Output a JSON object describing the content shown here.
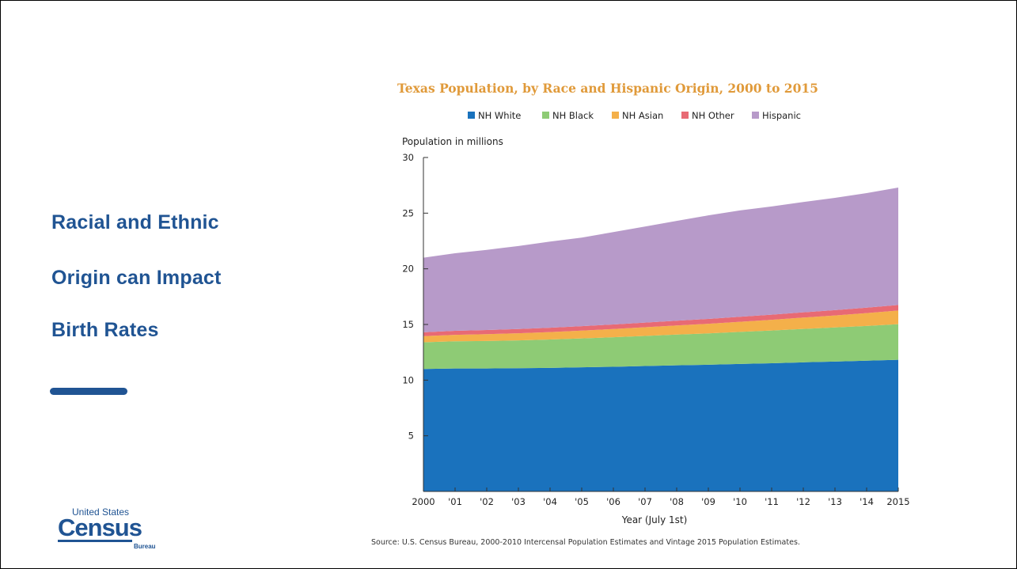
{
  "slide": {
    "title_lines": [
      "Racial and Ethnic",
      "Origin can Impact",
      "Birth Rates"
    ],
    "accent_color": "#205493"
  },
  "logo": {
    "top": "United States",
    "main": "Census",
    "sub": "Bureau"
  },
  "chart_data": {
    "type": "area",
    "stacked": true,
    "title": "Texas Population, by Race and Hispanic Origin, 2000 to 2015",
    "ylabel": "Population in millions",
    "xlabel": "Year (July 1st)",
    "ylim": [
      0,
      30
    ],
    "yticks": [
      5,
      10,
      15,
      20,
      25,
      30
    ],
    "categories": [
      "2000",
      "'01",
      "'02",
      "'03",
      "'04",
      "'05",
      "'06",
      "'07",
      "'08",
      "'09",
      "'10",
      "'11",
      "'12",
      "'13",
      "'14",
      "2015"
    ],
    "legend_position": "top",
    "series": [
      {
        "name": "NH White",
        "color": "#1a72bd",
        "values": [
          11.0,
          11.05,
          11.05,
          11.07,
          11.1,
          11.15,
          11.2,
          11.27,
          11.33,
          11.38,
          11.45,
          11.52,
          11.6,
          11.67,
          11.75,
          11.83
        ]
      },
      {
        "name": "NH Black",
        "color": "#8ecb75",
        "values": [
          2.4,
          2.44,
          2.47,
          2.5,
          2.55,
          2.6,
          2.65,
          2.7,
          2.76,
          2.82,
          2.88,
          2.94,
          3.0,
          3.06,
          3.12,
          3.2
        ]
      },
      {
        "name": "NH Asian",
        "color": "#f4b04a",
        "values": [
          0.55,
          0.58,
          0.61,
          0.64,
          0.67,
          0.7,
          0.74,
          0.78,
          0.82,
          0.86,
          0.91,
          0.96,
          1.02,
          1.08,
          1.15,
          1.22
        ]
      },
      {
        "name": "NH Other",
        "color": "#e86a74",
        "values": [
          0.35,
          0.36,
          0.37,
          0.38,
          0.39,
          0.4,
          0.41,
          0.42,
          0.43,
          0.44,
          0.45,
          0.46,
          0.47,
          0.48,
          0.49,
          0.5
        ]
      },
      {
        "name": "Hispanic",
        "color": "#b79ac9",
        "values": [
          6.7,
          6.97,
          7.2,
          7.46,
          7.74,
          7.95,
          8.3,
          8.63,
          8.96,
          9.3,
          9.56,
          9.72,
          9.91,
          10.08,
          10.29,
          10.55
        ]
      }
    ],
    "source": "Source: U.S. Census Bureau, 2000-2010 Intercensal Population Estimates and Vintage 2015 Population Estimates."
  }
}
